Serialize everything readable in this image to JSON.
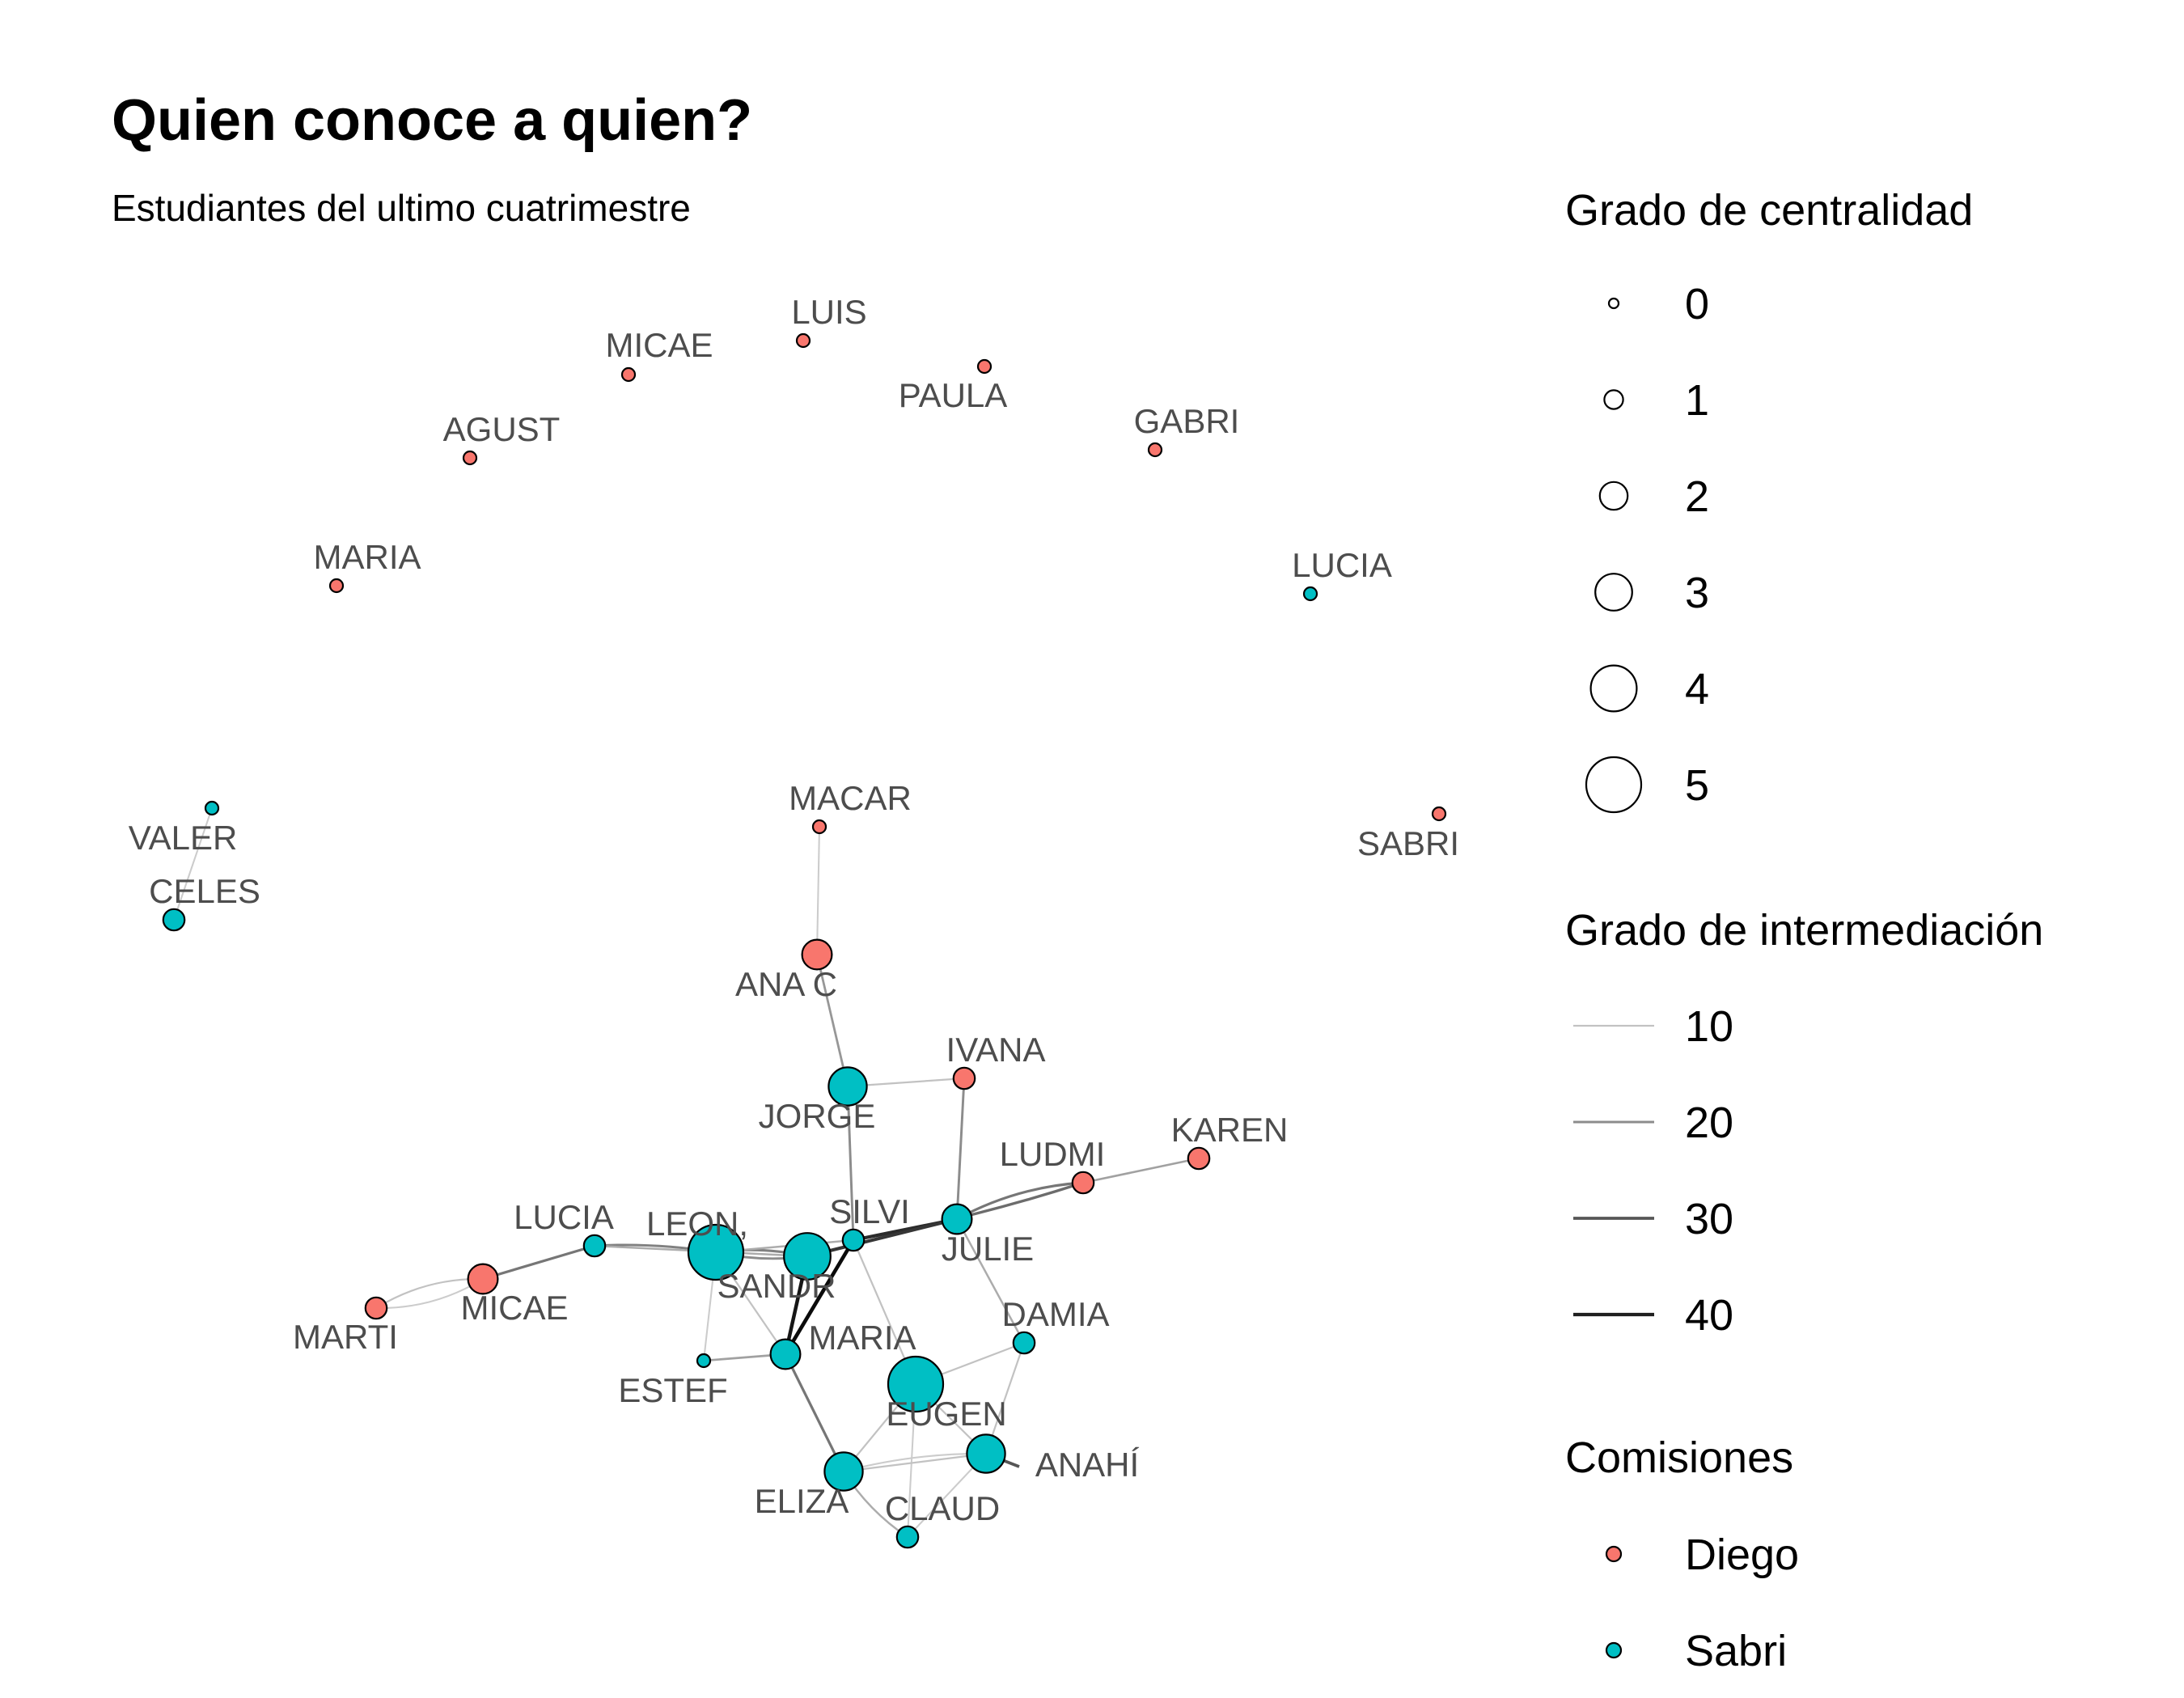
{
  "title": "Quien conoce a quien?",
  "subtitle": "Estudiantes del ultimo cuatrimestre",
  "colors": {
    "Diego": "#F8766D",
    "Sabri": "#00BFC4",
    "stroke": "#000000"
  },
  "legends": {
    "centrality": {
      "title": "Grado de centralidad",
      "values": [
        "0",
        "1",
        "2",
        "3",
        "4",
        "5"
      ]
    },
    "betweenness": {
      "title": "Grado de intermediación",
      "values": [
        "10",
        "20",
        "30",
        "40"
      ]
    },
    "commission": {
      "title": "Comisiones",
      "values": [
        "Diego",
        "Sabri"
      ]
    }
  },
  "chart_data": {
    "type": "network",
    "nodes": [
      {
        "id": "luis",
        "label": "LUIS",
        "group": "Diego",
        "degree": 0
      },
      {
        "id": "micae1",
        "label": "MICAE",
        "group": "Diego",
        "degree": 0
      },
      {
        "id": "paula",
        "label": "PAULA",
        "group": "Diego",
        "degree": 0
      },
      {
        "id": "agust",
        "label": "AGUST",
        "group": "Diego",
        "degree": 0
      },
      {
        "id": "gabri",
        "label": "GABRI",
        "group": "Diego",
        "degree": 0
      },
      {
        "id": "maria1",
        "label": "MARIA",
        "group": "Diego",
        "degree": 0
      },
      {
        "id": "lucia1",
        "label": "LUCIA",
        "group": "Sabri",
        "degree": 0
      },
      {
        "id": "valer",
        "label": "VALER",
        "group": "Sabri",
        "degree": 0
      },
      {
        "id": "sabri",
        "label": "SABRI",
        "group": "Diego",
        "degree": 0
      },
      {
        "id": "macar",
        "label": "MACAR",
        "group": "Diego",
        "degree": 0
      },
      {
        "id": "celes",
        "label": "CELES",
        "group": "Sabri",
        "degree": 1
      },
      {
        "id": "anac",
        "label": "ANA C",
        "group": "Diego",
        "degree": 2
      },
      {
        "id": "ivana",
        "label": "IVANA",
        "group": "Diego",
        "degree": 1
      },
      {
        "id": "jorge",
        "label": "JORGE",
        "group": "Sabri",
        "degree": 3
      },
      {
        "id": "karen",
        "label": "KAREN",
        "group": "Diego",
        "degree": 1
      },
      {
        "id": "ludmi",
        "label": "LUDMI",
        "group": "Diego",
        "degree": 1
      },
      {
        "id": "lucia2",
        "label": "LUCIA",
        "group": "Sabri",
        "degree": 1
      },
      {
        "id": "leon",
        "label": "LEON,",
        "group": "Sabri",
        "degree": 5
      },
      {
        "id": "silvi",
        "label": "SILVI",
        "group": "Sabri",
        "degree": 1
      },
      {
        "id": "julie",
        "label": "JULIE",
        "group": "Sabri",
        "degree": 2
      },
      {
        "id": "sandr",
        "label": "SANDR",
        "group": "Sabri",
        "degree": 4
      },
      {
        "id": "marti",
        "label": "MARTI",
        "group": "Diego",
        "degree": 1
      },
      {
        "id": "micae2",
        "label": "MICAE",
        "group": "Diego",
        "degree": 2
      },
      {
        "id": "damia",
        "label": "DAMIA",
        "group": "Sabri",
        "degree": 1
      },
      {
        "id": "maria2",
        "label": "MARIA",
        "group": "Sabri",
        "degree": 2
      },
      {
        "id": "estef",
        "label": "ESTEF",
        "group": "Sabri",
        "degree": 0
      },
      {
        "id": "eugen",
        "label": "EUGEN",
        "group": "Sabri",
        "degree": 5
      },
      {
        "id": "anahi",
        "label": "ANAHÍ",
        "group": "Sabri",
        "degree": 3
      },
      {
        "id": "eliza",
        "label": "ELIZA",
        "group": "Sabri",
        "degree": 3
      },
      {
        "id": "claud",
        "label": "CLAUD",
        "group": "Sabri",
        "degree": 1
      }
    ],
    "edges": [
      {
        "source": "valer",
        "target": "celes",
        "betweenness": 8
      },
      {
        "source": "macar",
        "target": "anac",
        "betweenness": 8
      },
      {
        "source": "anac",
        "target": "jorge",
        "betweenness": 18
      },
      {
        "source": "jorge",
        "target": "ivana",
        "betweenness": 10
      },
      {
        "source": "jorge",
        "target": "silvi",
        "betweenness": 20
      },
      {
        "source": "ivana",
        "target": "julie",
        "betweenness": 20
      },
      {
        "source": "ludmi",
        "target": "karen",
        "betweenness": 16
      },
      {
        "source": "julie",
        "target": "ludmi",
        "betweenness": 24
      },
      {
        "source": "silvi",
        "target": "ludmi",
        "betweenness": 26
      },
      {
        "source": "silvi",
        "target": "julie",
        "betweenness": 38
      },
      {
        "source": "sandr",
        "target": "julie",
        "betweenness": 36
      },
      {
        "source": "leon",
        "target": "sandr",
        "betweenness": 22
      },
      {
        "source": "leon",
        "target": "sandr",
        "betweenness": 20
      },
      {
        "source": "leon",
        "target": "silvi",
        "betweenness": 14
      },
      {
        "source": "lucia2",
        "target": "leon",
        "betweenness": 22
      },
      {
        "source": "lucia2",
        "target": "sandr",
        "betweenness": 14
      },
      {
        "source": "micae2",
        "target": "lucia2",
        "betweenness": 24
      },
      {
        "source": "marti",
        "target": "micae2",
        "betweenness": 10
      },
      {
        "source": "marti",
        "target": "micae2",
        "betweenness": 8
      },
      {
        "source": "leon",
        "target": "estef",
        "betweenness": 8
      },
      {
        "source": "estef",
        "target": "maria2",
        "betweenness": 16
      },
      {
        "source": "leon",
        "target": "maria2",
        "betweenness": 10
      },
      {
        "source": "sandr",
        "target": "maria2",
        "betweenness": 42
      },
      {
        "source": "silvi",
        "target": "maria2",
        "betweenness": 44
      },
      {
        "source": "silvi",
        "target": "eugen",
        "betweenness": 10
      },
      {
        "source": "julie",
        "target": "damia",
        "betweenness": 14
      },
      {
        "source": "damia",
        "target": "eugen",
        "betweenness": 10
      },
      {
        "source": "damia",
        "target": "anahi",
        "betweenness": 10
      },
      {
        "source": "maria2",
        "target": "eliza",
        "betweenness": 24
      },
      {
        "source": "eugen",
        "target": "anahi",
        "betweenness": 10
      },
      {
        "source": "eugen",
        "target": "eliza",
        "betweenness": 10
      },
      {
        "source": "eugen",
        "target": "claud",
        "betweenness": 8
      },
      {
        "source": "eliza",
        "target": "anahi",
        "betweenness": 10
      },
      {
        "source": "eliza",
        "target": "anahi",
        "betweenness": 8
      },
      {
        "source": "eliza",
        "target": "claud",
        "betweenness": 14
      },
      {
        "source": "claud",
        "target": "anahi",
        "betweenness": 8
      },
      {
        "source": "anahi",
        "target": "anahi_tail",
        "betweenness": 30
      }
    ]
  }
}
